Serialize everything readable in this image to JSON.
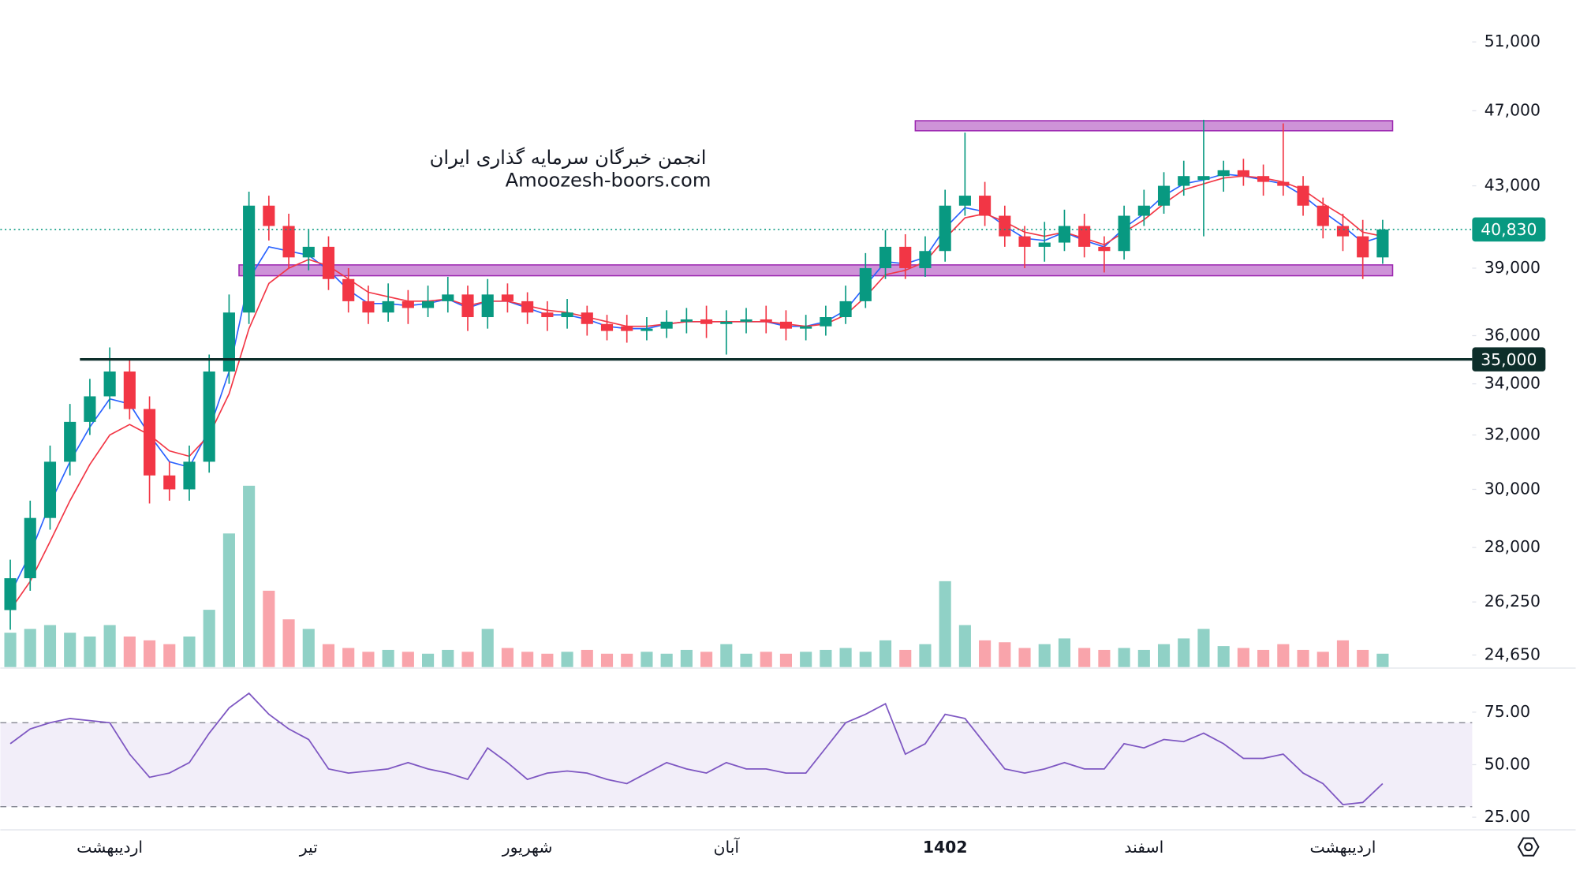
{
  "chart_data": [
    {
      "type": "candlestick",
      "watermark": [
        "انجمن خبرگان سرمایه گذاری ایران",
        "Amoozesh-boors.com"
      ],
      "categories": [
        null,
        null,
        null,
        null,
        null,
        "اردیبهشت",
        null,
        null,
        null,
        null,
        null,
        null,
        null,
        null,
        null,
        "تیر",
        null,
        null,
        null,
        null,
        null,
        null,
        null,
        null,
        null,
        null,
        "شهریور",
        null,
        null,
        null,
        null,
        null,
        null,
        null,
        null,
        null,
        "آبان",
        null,
        null,
        null,
        null,
        null,
        null,
        null,
        null,
        null,
        null,
        "1402",
        null,
        null,
        null,
        null,
        null,
        null,
        null,
        null,
        null,
        "اسفند",
        null,
        null,
        null,
        null,
        null,
        null,
        null,
        null,
        null,
        "اردیبهشت",
        null,
        null,
        null,
        null,
        null,
        null
      ],
      "open": [
        26000,
        27000,
        29000,
        31000,
        32500,
        33500,
        34500,
        33000,
        30500,
        30000,
        31000,
        34500,
        37000,
        42000,
        41000,
        39500,
        40000,
        38500,
        37500,
        37000,
        37500,
        37200,
        37500,
        37800,
        36800,
        37800,
        37500,
        37000,
        36800,
        37000,
        36500,
        36400,
        36200,
        36300,
        36600,
        36700,
        36500,
        36600,
        36700,
        36600,
        36300,
        36400,
        36800,
        37500,
        39000,
        40000,
        39000,
        39800,
        42000,
        42500,
        41500,
        40500,
        40000,
        40200,
        41000,
        40000,
        39800,
        41500,
        42000,
        43000,
        43300,
        43500,
        43800,
        43500,
        43200,
        43000,
        42000,
        41000,
        40500,
        39500,
        null,
        null,
        null,
        null
      ],
      "high": [
        27600,
        29600,
        31600,
        33200,
        34200,
        35500,
        35000,
        33500,
        31000,
        31600,
        35200,
        37800,
        42700,
        42500,
        41600,
        40800,
        40500,
        39000,
        38200,
        38300,
        38000,
        38200,
        38600,
        38200,
        38500,
        38300,
        37900,
        37500,
        37600,
        37300,
        36900,
        36900,
        36800,
        37100,
        37200,
        37300,
        37100,
        37200,
        37300,
        37100,
        36900,
        37300,
        38200,
        39700,
        40800,
        40600,
        40500,
        42800,
        45800,
        43200,
        42000,
        41000,
        41200,
        41800,
        41600,
        40500,
        42000,
        42800,
        43700,
        44300,
        46500,
        44300,
        44400,
        44100,
        46300,
        43500,
        42400,
        41600,
        41300,
        41300,
        null,
        null,
        null,
        null
      ],
      "low": [
        25400,
        26600,
        28600,
        30500,
        32000,
        33000,
        32600,
        29500,
        29600,
        29600,
        30600,
        34000,
        36500,
        40300,
        39000,
        38900,
        38000,
        37000,
        36500,
        36600,
        36500,
        36800,
        37000,
        36200,
        36300,
        37000,
        36500,
        36200,
        36300,
        36000,
        35800,
        35700,
        35800,
        35900,
        36100,
        35900,
        35200,
        36100,
        36100,
        35800,
        35800,
        36000,
        36500,
        37200,
        38500,
        38500,
        38600,
        39300,
        41500,
        41000,
        40000,
        39000,
        39300,
        39800,
        39500,
        38800,
        39400,
        41000,
        41600,
        42500,
        40500,
        42700,
        43000,
        42500,
        42500,
        41500,
        40400,
        39800,
        38500,
        39200,
        null,
        null,
        null,
        null
      ],
      "close": [
        27000,
        29000,
        31000,
        32500,
        33500,
        34500,
        33000,
        30500,
        30000,
        31000,
        34500,
        37000,
        42000,
        41000,
        39500,
        40000,
        38500,
        37500,
        37000,
        37500,
        37200,
        37500,
        37800,
        36800,
        37800,
        37500,
        37000,
        36800,
        37000,
        36500,
        36200,
        36200,
        36300,
        36600,
        36700,
        36500,
        36600,
        36700,
        36600,
        36300,
        36400,
        36800,
        37500,
        39000,
        40000,
        39000,
        39800,
        42000,
        42500,
        41500,
        40500,
        40000,
        40200,
        41000,
        40000,
        39800,
        41500,
        42000,
        43000,
        43500,
        43500,
        43800,
        43500,
        43200,
        43000,
        42000,
        41000,
        40500,
        39500,
        40830,
        null,
        null,
        null,
        null
      ],
      "up_color": "#089981",
      "down_color": "#f23645",
      "series": [
        {
          "color": "#2962ff",
          "values": [
            26500,
            27800,
            29500,
            31000,
            32300,
            33400,
            33200,
            32000,
            31000,
            30800,
            32200,
            34500,
            38500,
            40000,
            39800,
            39600,
            38900,
            38000,
            37400,
            37400,
            37300,
            37400,
            37600,
            37200,
            37500,
            37500,
            37200,
            36900,
            36900,
            36700,
            36400,
            36300,
            36300,
            36500,
            36600,
            36600,
            36600,
            36600,
            36600,
            36400,
            36400,
            36600,
            37100,
            38200,
            39300,
            39200,
            39500,
            40900,
            41900,
            41700,
            41000,
            40400,
            40300,
            40700,
            40300,
            40000,
            40900,
            41600,
            42500,
            43100,
            43300,
            43600,
            43500,
            43300,
            43100,
            42500,
            41700,
            41000,
            40200,
            40500,
            null,
            null,
            null,
            null
          ]
        },
        {
          "color": "#f23645",
          "values": [
            26000,
            26900,
            28200,
            29600,
            30900,
            32000,
            32400,
            32000,
            31400,
            31200,
            32000,
            33600,
            36300,
            38300,
            39000,
            39400,
            39100,
            38500,
            37900,
            37700,
            37500,
            37500,
            37600,
            37300,
            37500,
            37500,
            37300,
            37100,
            37000,
            36800,
            36600,
            36400,
            36400,
            36500,
            36600,
            36600,
            36600,
            36600,
            36600,
            36500,
            36400,
            36500,
            36900,
            37700,
            38700,
            38900,
            39300,
            40400,
            41400,
            41600,
            41200,
            40700,
            40500,
            40700,
            40400,
            40100,
            40700,
            41300,
            42100,
            42800,
            43100,
            43400,
            43500,
            43400,
            43200,
            42800,
            42100,
            41500,
            40700,
            40500,
            null,
            null,
            null,
            null
          ]
        }
      ],
      "volume": [
        18,
        20,
        22,
        18,
        16,
        22,
        16,
        14,
        12,
        16,
        30,
        70,
        95,
        40,
        25,
        20,
        12,
        10,
        8,
        9,
        8,
        7,
        9,
        8,
        20,
        10,
        8,
        7,
        8,
        9,
        7,
        7,
        8,
        7,
        9,
        8,
        12,
        7,
        8,
        7,
        8,
        9,
        10,
        8,
        14,
        9,
        12,
        45,
        22,
        14,
        13,
        10,
        12,
        15,
        10,
        9,
        10,
        9,
        12,
        15,
        20,
        11,
        10,
        9,
        12,
        9,
        8,
        14,
        9,
        7,
        null,
        null,
        null,
        null
      ],
      "volume_lim": [
        0,
        100
      ],
      "zones": [
        {
          "low": 38650,
          "high": 39150,
          "from": 12,
          "to": 70
        },
        {
          "low": 45900,
          "high": 46450,
          "from": 46,
          "to": 70
        }
      ],
      "price_lines": [
        {
          "value": 35000,
          "label": "35,000",
          "from": 4,
          "color": "#0d2e2a",
          "style": "solid"
        },
        {
          "value": 40830,
          "label": "40,830",
          "from": 0,
          "color": "#089981",
          "style": "dotted"
        }
      ],
      "log_scale": true,
      "grid": false,
      "ylim": [
        24300,
        53600
      ],
      "yticks": [
        {
          "value": 51000,
          "label": "51,000"
        },
        {
          "value": 47000,
          "label": "47,000"
        },
        {
          "value": 43000,
          "label": "43,000"
        },
        {
          "value": 39000,
          "label": "39,000"
        },
        {
          "value": 36000,
          "label": "36,000"
        },
        {
          "value": 34000,
          "label": "34,000"
        },
        {
          "value": 32000,
          "label": "32,000"
        },
        {
          "value": 30000,
          "label": "30,000"
        },
        {
          "value": 28000,
          "label": "28,000"
        },
        {
          "value": 26250,
          "label": "26,250"
        },
        {
          "value": 24650,
          "label": "24,650"
        }
      ]
    },
    {
      "type": "line",
      "color": "#7e57c2",
      "values": [
        60,
        67,
        70,
        72,
        71,
        70,
        55,
        44,
        46,
        51,
        65,
        77,
        84,
        74,
        67,
        62,
        48,
        46,
        47,
        48,
        51,
        48,
        46,
        43,
        58,
        51,
        43,
        46,
        47,
        46,
        43,
        41,
        46,
        51,
        48,
        46,
        51,
        48,
        48,
        46,
        46,
        58,
        70,
        74,
        79,
        55,
        60,
        74,
        72,
        60,
        48,
        46,
        48,
        51,
        48,
        48,
        60,
        58,
        62,
        61,
        65,
        60,
        53,
        53,
        55,
        46,
        41,
        31,
        32,
        41,
        null,
        null,
        null,
        null
      ],
      "bands": [
        30,
        70
      ],
      "ylim": [
        19,
        96
      ],
      "yticks": [
        {
          "value": 75,
          "label": "75.00"
        },
        {
          "value": 50,
          "label": "50.00"
        },
        {
          "value": 25,
          "label": "25.00"
        }
      ]
    }
  ]
}
